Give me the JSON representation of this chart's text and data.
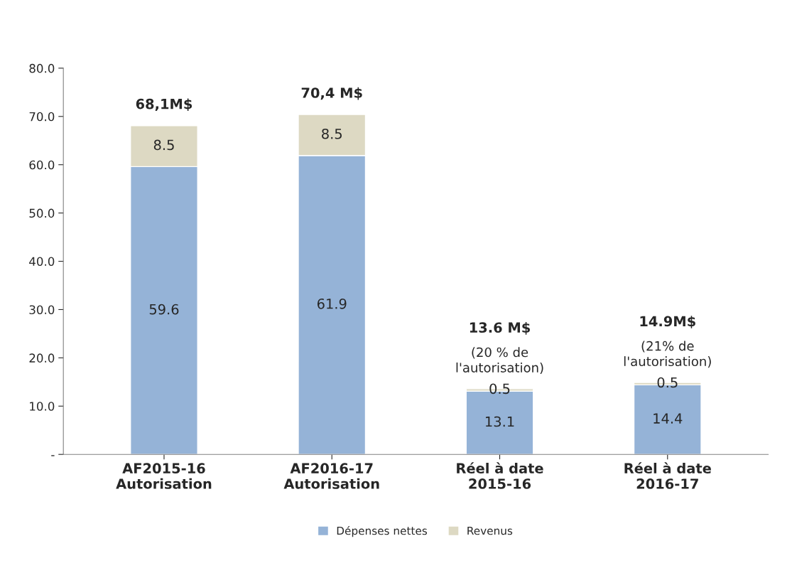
{
  "chart_data": {
    "type": "bar",
    "stacked": true,
    "categories": [
      "AF2015-16\nAutorisation",
      "AF2016-17\nAutorisation",
      "Réel à date\n2015-16",
      "Réel à date\n2016-17"
    ],
    "series": [
      {
        "name": "Dépenses nettes",
        "color": "#95b3d7",
        "values": [
          59.6,
          61.9,
          13.1,
          14.4
        ]
      },
      {
        "name": "Revenus",
        "color": "#ddd9c3",
        "values": [
          8.5,
          8.5,
          0.5,
          0.5
        ]
      }
    ],
    "ylim": [
      0,
      80
    ],
    "yticks": [
      {
        "value": 0,
        "label": "-"
      },
      {
        "value": 10,
        "label": "10.0"
      },
      {
        "value": 20,
        "label": "20.0"
      },
      {
        "value": 30,
        "label": "30.0"
      },
      {
        "value": 40,
        "label": "40.0"
      },
      {
        "value": 50,
        "label": "50.0"
      },
      {
        "value": 60,
        "label": "60.0"
      },
      {
        "value": 70,
        "label": "70.0"
      },
      {
        "value": 80,
        "label": "80.0"
      }
    ],
    "data_labels": true,
    "totals": [
      "68,1M$",
      "70,4 M$",
      "13.6 M$\n(20 % de\nl'autorisation)",
      "14.9M$\n(21% de\nl'autorisation)"
    ],
    "grid": false,
    "legend": "bottom"
  }
}
